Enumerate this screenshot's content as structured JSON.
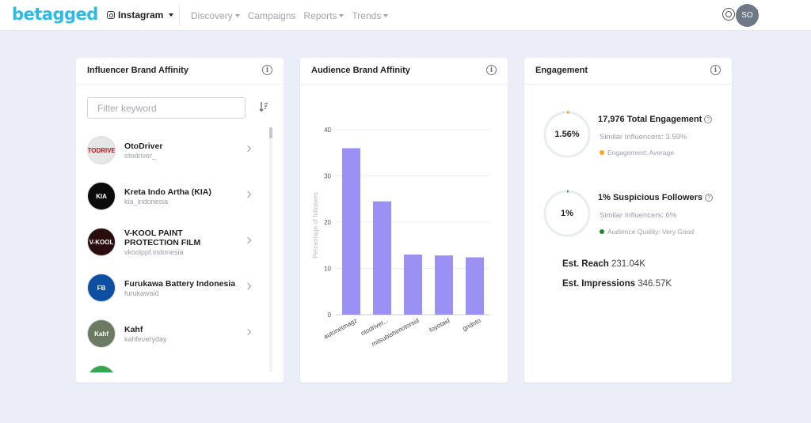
{
  "header": {
    "logo": "betagged",
    "platform": "Instagram",
    "nav": [
      "Discovery",
      "Campaigns",
      "Reports",
      "Trends"
    ],
    "nav_has_caret": [
      true,
      false,
      true,
      true
    ],
    "avatar_initials": "SO"
  },
  "influencer_card": {
    "title": "Influencer Brand Affinity",
    "filter_placeholder": "Filter keyword",
    "items": [
      {
        "name": "OtoDriver",
        "handle": "otodriver_",
        "logo_text": "OTODRIVER",
        "logo_bg": "#e6e6e6",
        "logo_fg": "#c0141c"
      },
      {
        "name": "Kreta Indo Artha (KIA)",
        "handle": "kia_indonesia",
        "logo_text": "KIA",
        "logo_bg": "#0b0b0b",
        "logo_fg": "#ffffff"
      },
      {
        "name": "V-KOOL PAINT PROTECTION FILM",
        "handle": "vkoolppf.indonesia",
        "logo_text": "V-KOOL",
        "logo_bg": "#2a0d0d",
        "logo_fg": "#ffffff"
      },
      {
        "name": "Furukawa Battery Indonesia",
        "handle": "furukawaid",
        "logo_text": "FB",
        "logo_bg": "#0f4fa3",
        "logo_fg": "#ffffff"
      },
      {
        "name": "Kahf",
        "handle": "kahfeveryday",
        "logo_text": "Kahf",
        "logo_bg": "#6d7a62",
        "logo_fg": "#ffffff"
      },
      {
        "name": "",
        "handle": "",
        "logo_text": "",
        "logo_bg": "#2fa84f",
        "logo_fg": "#ffffff"
      }
    ]
  },
  "audience_card": {
    "title": "Audience Brand Affinity"
  },
  "chart_data": {
    "type": "bar",
    "categories": [
      "autonetmagz",
      "otodriver_",
      "mitsubishimotorsid",
      "toyotaid",
      "gridoto"
    ],
    "tick_labels": [
      "autonetmagz",
      "otodriver...",
      "mitsubishimotorsid",
      "toyotaid",
      "gridoto"
    ],
    "values": [
      36.0,
      24.5,
      13.0,
      12.8,
      12.4
    ],
    "ylabel": "Percentage of followers",
    "ylim": [
      0,
      40
    ],
    "yticks": [
      0,
      10,
      20,
      30,
      40
    ],
    "bar_color": "#9b91f5",
    "grid": true
  },
  "engagement_card": {
    "title": "Engagement",
    "rate_value": "1.56%",
    "rate_fraction": 0.0156,
    "rate_ring_color": "#f5a623",
    "total_engagement": "17,976 Total Engagement",
    "similar_engagement": "Similar Influencers: 3.59%",
    "engagement_status": "Engagement: Average",
    "engagement_status_color": "#f5a623",
    "suspicious_value": "1%",
    "suspicious_fraction": 0.01,
    "suspicious_ring_color": "#2e9c3a",
    "suspicious_title": "1% Suspicious Followers",
    "similar_suspicious": "Similar Influencers: 6%",
    "quality_status": "Audience Quality: Very Good",
    "quality_status_color": "#1f8a2a",
    "reach_label": "Est. Reach",
    "reach_value": "231.04K",
    "impressions_label": "Est. Impressions",
    "impressions_value": "346.57K"
  }
}
